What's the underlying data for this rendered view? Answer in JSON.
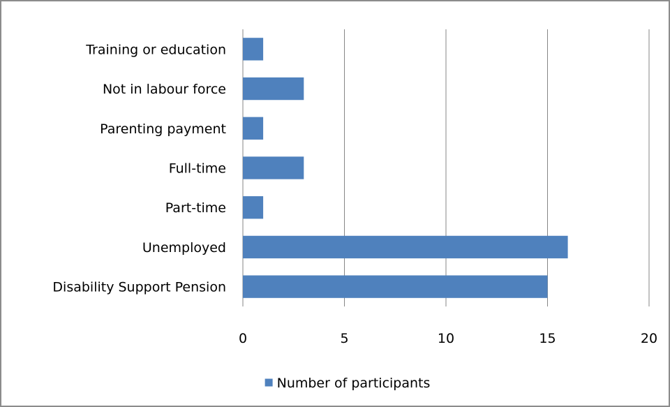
{
  "chart_data": {
    "type": "bar",
    "orientation": "horizontal",
    "categories": [
      "Disability Support Pension",
      "Unemployed",
      "Part-time",
      "Full-time",
      "Parenting payment",
      "Not in labour force",
      "Training or education"
    ],
    "series": [
      {
        "name": "Number of participants",
        "values": [
          15,
          16,
          1,
          3,
          1,
          3,
          1
        ],
        "color": "#4f81bd"
      }
    ],
    "xlim": [
      0,
      20
    ],
    "xticks": [
      "0",
      "5",
      "10",
      "15",
      "20"
    ],
    "grid": "vertical",
    "legend_position": "bottom",
    "gridline_color": "#868686",
    "axis_color": "#868686",
    "border_color": "#8c8c8c"
  }
}
